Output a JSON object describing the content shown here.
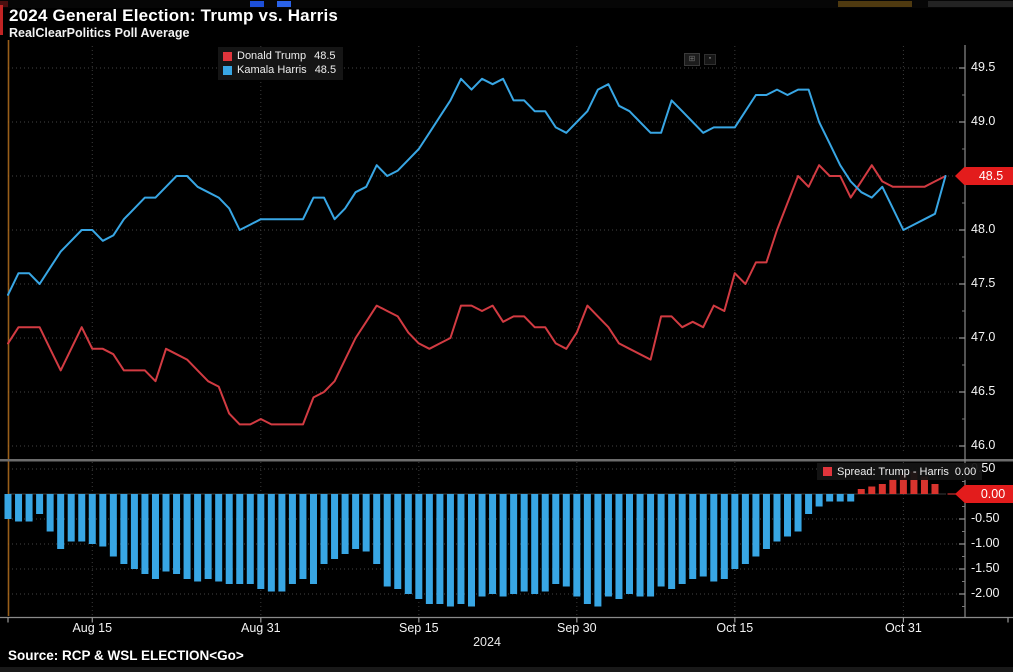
{
  "header": {
    "title": "2024 General Election: Trump vs. Harris",
    "subtitle": "RealClearPolitics Poll Average"
  },
  "legend": {
    "main": [
      {
        "label": "Donald Trump",
        "value": "48.5",
        "color": "#e0353c"
      },
      {
        "label": "Kamala Harris",
        "value": "48.5",
        "color": "#38a6e4"
      }
    ],
    "spread": {
      "label": "Spread: Trump - Harris",
      "value": "0.00",
      "color": "#e0353c"
    }
  },
  "axis": {
    "badge_main": {
      "label": "48.5",
      "v": 48.5,
      "color": "#e31c1c"
    },
    "badge_spread": {
      "label": "0.00",
      "v": 0.0,
      "color": "#e31c1c"
    },
    "y_main_labels": [
      {
        "label": "49.5",
        "v": 49.5
      },
      {
        "label": "49.0",
        "v": 49.0
      },
      {
        "label": "48.0",
        "v": 48.0
      },
      {
        "label": "47.5",
        "v": 47.5
      },
      {
        "label": "47.0",
        "v": 47.0
      },
      {
        "label": "46.5",
        "v": 46.5
      },
      {
        "label": "46.0",
        "v": 46.0
      }
    ],
    "y_spread_labels": [
      {
        "label": "0.50",
        "v": 0.5
      },
      {
        "label": "-0.50",
        "v": -0.5
      },
      {
        "label": "-1.00",
        "v": -1.0
      },
      {
        "label": "-1.50",
        "v": -1.5
      },
      {
        "label": "-2.00",
        "v": -2.0
      }
    ],
    "x_ticks": [
      {
        "label": "Aug 15",
        "i": 8
      },
      {
        "label": "Aug 31",
        "i": 24
      },
      {
        "label": "Sep 15",
        "i": 39
      },
      {
        "label": "Sep 30",
        "i": 54
      },
      {
        "label": "Oct 15",
        "i": 69
      },
      {
        "label": "Oct 31",
        "i": 85
      }
    ]
  },
  "footer": {
    "year": "2024",
    "source": "Source: RCP & WSL ELECTION<Go>"
  },
  "icons": {
    "panel_tool": "⊞",
    "panel_tool_small": "▪"
  },
  "chart_data": [
    {
      "type": "line",
      "title": "2024 General Election: Trump vs. Harris",
      "subtitle": "RealClearPolitics Poll Average",
      "x_start": "2024-08-07",
      "x_end": "2024-11-04",
      "x_unit": "day",
      "xtick_labels": [
        "Aug 15",
        "Aug 31",
        "Sep 15",
        "Sep 30",
        "Oct 15",
        "Oct 31"
      ],
      "ylim": [
        46.0,
        49.5
      ],
      "yticks": [
        49.5,
        49.0,
        48.5,
        48.0,
        47.5,
        47.0,
        46.5,
        46.0
      ],
      "grid": true,
      "legend_position": "top-left",
      "series": [
        {
          "name": "Donald Trump",
          "color": "#d23b42",
          "last_value": 48.5,
          "values": [
            46.95,
            47.1,
            47.1,
            47.1,
            46.9,
            46.7,
            46.9,
            47.1,
            46.9,
            46.9,
            46.85,
            46.7,
            46.7,
            46.7,
            46.6,
            46.9,
            46.85,
            46.8,
            46.7,
            46.6,
            46.55,
            46.3,
            46.2,
            46.2,
            46.25,
            46.2,
            46.2,
            46.2,
            46.2,
            46.45,
            46.5,
            46.6,
            46.8,
            47.0,
            47.15,
            47.3,
            47.25,
            47.2,
            47.05,
            46.95,
            46.9,
            46.95,
            47.0,
            47.3,
            47.3,
            47.25,
            47.3,
            47.15,
            47.2,
            47.2,
            47.1,
            47.1,
            46.95,
            46.9,
            47.05,
            47.3,
            47.2,
            47.1,
            46.95,
            46.9,
            46.85,
            46.8,
            47.2,
            47.2,
            47.1,
            47.15,
            47.1,
            47.3,
            47.25,
            47.6,
            47.5,
            47.7,
            47.7,
            48.0,
            48.25,
            48.5,
            48.4,
            48.6,
            48.5,
            48.5,
            48.3,
            48.45,
            48.6,
            48.45,
            48.4,
            48.4,
            48.4,
            48.4,
            48.45,
            48.5
          ]
        },
        {
          "name": "Kamala Harris",
          "color": "#38a6e4",
          "last_value": 48.5,
          "values": [
            47.4,
            47.6,
            47.6,
            47.5,
            47.65,
            47.8,
            47.9,
            48.0,
            48.0,
            47.9,
            47.95,
            48.1,
            48.2,
            48.3,
            48.3,
            48.4,
            48.5,
            48.5,
            48.4,
            48.35,
            48.3,
            48.2,
            48.0,
            48.05,
            48.1,
            48.1,
            48.1,
            48.1,
            48.1,
            48.3,
            48.3,
            48.1,
            48.2,
            48.35,
            48.4,
            48.6,
            48.5,
            48.55,
            48.65,
            48.75,
            48.9,
            49.05,
            49.2,
            49.4,
            49.3,
            49.4,
            49.35,
            49.4,
            49.2,
            49.2,
            49.1,
            49.1,
            48.95,
            48.9,
            49.0,
            49.1,
            49.3,
            49.35,
            49.15,
            49.1,
            49.0,
            48.9,
            48.9,
            49.2,
            49.1,
            49.0,
            48.9,
            48.95,
            48.95,
            48.95,
            49.1,
            49.25,
            49.25,
            49.3,
            49.25,
            49.3,
            49.3,
            49.0,
            48.8,
            48.6,
            48.45,
            48.35,
            48.3,
            48.4,
            48.2,
            48.0,
            48.05,
            48.1,
            48.15,
            48.5
          ]
        }
      ]
    },
    {
      "type": "bar",
      "name": "Spread: Trump - Harris",
      "last_value": 0.0,
      "ylim": [
        -2.5,
        0.6
      ],
      "yticks": [
        0.5,
        0.0,
        -0.5,
        -1.0,
        -1.5,
        -2.0
      ],
      "colors": {
        "positive": "#d9342e",
        "negative": "#38a6e4"
      },
      "values": [
        -0.5,
        -0.55,
        -0.55,
        -0.4,
        -0.75,
        -1.1,
        -0.95,
        -0.95,
        -1.0,
        -1.05,
        -1.25,
        -1.4,
        -1.5,
        -1.6,
        -1.7,
        -1.55,
        -1.6,
        -1.7,
        -1.75,
        -1.7,
        -1.75,
        -1.8,
        -1.8,
        -1.8,
        -1.9,
        -1.95,
        -1.95,
        -1.8,
        -1.7,
        -1.8,
        -1.4,
        -1.3,
        -1.2,
        -1.1,
        -1.15,
        -1.4,
        -1.85,
        -1.9,
        -2.0,
        -2.1,
        -2.2,
        -2.2,
        -2.25,
        -2.2,
        -2.25,
        -2.05,
        -2.0,
        -2.05,
        -2.0,
        -1.95,
        -2.0,
        -1.95,
        -1.8,
        -1.85,
        -2.05,
        -2.2,
        -2.25,
        -2.05,
        -2.1,
        -2.0,
        -2.05,
        -2.05,
        -1.85,
        -1.9,
        -1.8,
        -1.7,
        -1.65,
        -1.75,
        -1.7,
        -1.5,
        -1.4,
        -1.25,
        -1.1,
        -0.95,
        -0.85,
        -0.75,
        -0.4,
        -0.25,
        -0.15,
        -0.15,
        -0.15,
        0.1,
        0.15,
        0.2,
        0.3,
        0.4,
        0.45,
        0.35,
        0.2,
        0.0
      ]
    }
  ]
}
